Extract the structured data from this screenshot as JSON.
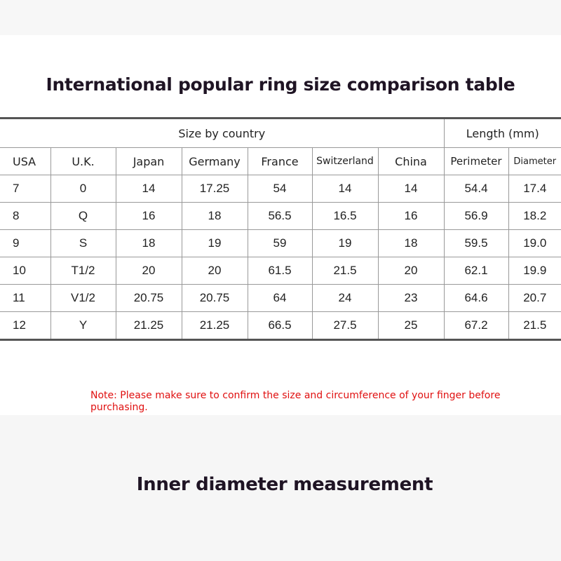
{
  "title": "International popular ring size comparison table",
  "group_headers": {
    "country": "Size by country",
    "length": "Length (mm)"
  },
  "columns": [
    "USA",
    "U.K.",
    "Japan",
    "Germany",
    "France",
    "Switzerland",
    "China",
    "Perimeter",
    "Diameter"
  ],
  "rows": [
    [
      "7",
      "0",
      "14",
      "17.25",
      "54",
      "14",
      "14",
      "54.4",
      "17.4"
    ],
    [
      "8",
      "Q",
      "16",
      "18",
      "56.5",
      "16.5",
      "16",
      "56.9",
      "18.2"
    ],
    [
      "9",
      "S",
      "18",
      "19",
      "59",
      "19",
      "18",
      "59.5",
      "19.0"
    ],
    [
      "10",
      "T1/2",
      "20",
      "20",
      "61.5",
      "21.5",
      "20",
      "62.1",
      "19.9"
    ],
    [
      "11",
      "V1/2",
      "20.75",
      "20.75",
      "64",
      "24",
      "23",
      "64.6",
      "20.7"
    ],
    [
      "12",
      "Y",
      "21.25",
      "21.25",
      "66.5",
      "27.5",
      "25",
      "67.2",
      "21.5"
    ]
  ],
  "note": "Note: Please make sure to confirm the size and circumference of your finger before purchasing.",
  "subtitle": "Inner diameter measurement",
  "colors": {
    "note": "#e01010",
    "title": "#1f1424"
  }
}
